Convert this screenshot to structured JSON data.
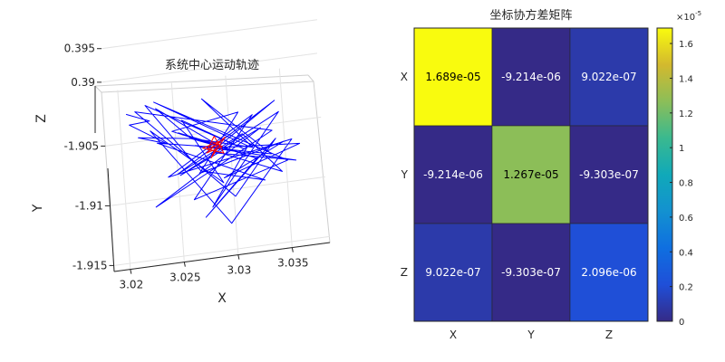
{
  "chart_data": [
    {
      "type": "line",
      "title": "系统中心运动轨迹",
      "xlabel": "X",
      "ylabel": "Y",
      "zlabel": "Z",
      "xlim": [
        3.0185,
        3.0385
      ],
      "ylim": [
        -1.9155,
        -1.9005
      ],
      "zlim": [
        0.3885,
        0.3955
      ],
      "x_ticks": [
        "3.02",
        "3.025",
        "3.03",
        "3.035"
      ],
      "y_ticks": [
        "-1.905",
        "-1.91",
        "-1.915"
      ],
      "z_ticks": [
        "0.395",
        "0.39"
      ],
      "grid": true,
      "series": [
        {
          "color": "#0000ff",
          "x": [
            3.0205,
            3.0225,
            3.0207,
            3.024,
            3.0215,
            3.0262,
            3.0232,
            3.0285,
            3.0252,
            3.0305,
            3.0262,
            3.0318,
            3.0275,
            3.0335,
            3.0282,
            3.0362,
            3.029,
            3.0348,
            3.0268,
            3.0308,
            3.0245,
            3.0322,
            3.0272,
            3.034,
            3.03,
            3.0212,
            3.0338,
            3.0226,
            3.0328,
            3.025,
            3.0345,
            3.0278,
            3.0315,
            3.023,
            3.035,
            3.0262,
            3.032,
            3.024,
            3.0355,
            3.0295,
            3.0225,
            3.029,
            3.0255,
            3.0312,
            3.0222,
            3.027,
            3.0328,
            3.0232,
            3.0286,
            3.0342,
            3.0248,
            3.031,
            3.0345,
            3.0266,
            3.0358,
            3.0282
          ],
          "y": [
            -1.904,
            -1.9062,
            -1.9052,
            -1.9079,
            -1.9058,
            -1.9084,
            -1.9044,
            -1.9087,
            -1.906,
            -1.9092,
            -1.9068,
            -1.9097,
            -1.904,
            -1.91,
            -1.9074,
            -1.909,
            -1.9118,
            -1.9082,
            -1.9106,
            -1.905,
            -1.9072,
            -1.9096,
            -1.9132,
            -1.9087,
            -1.9124,
            -1.9055,
            -1.907,
            -1.9128,
            -1.9062,
            -1.911,
            -1.9058,
            -1.9136,
            -1.9078,
            -1.9048,
            -1.9102,
            -1.912,
            -1.9066,
            -1.9094,
            -1.9086,
            -1.9142,
            -1.9071,
            -1.9112,
            -1.906,
            -1.9081,
            -1.9047,
            -1.9098,
            -1.9116,
            -1.9064,
            -1.9088,
            -1.9046,
            -1.9109,
            -1.9074,
            -1.9103,
            -1.9083,
            -1.9099,
            -1.9087
          ],
          "z": [
            0.391,
            0.3935,
            0.3915,
            0.3928,
            0.3905,
            0.394,
            0.392,
            0.3932,
            0.3908,
            0.3925,
            0.3912,
            0.3938,
            0.3918,
            0.393,
            0.3904,
            0.3922,
            0.3936,
            0.3914,
            0.3926,
            0.3909,
            0.3933,
            0.3919,
            0.3906,
            0.3929,
            0.3917,
            0.3939,
            0.3911,
            0.3924,
            0.3903,
            0.3934,
            0.3916,
            0.3927,
            0.3907,
            0.3937,
            0.3921,
            0.3913,
            0.3931,
            0.3905,
            0.3923,
            0.391,
            0.3936,
            0.3918,
            0.3926,
            0.3908,
            0.3932,
            0.3915,
            0.3921,
            0.3904,
            0.3929,
            0.3912,
            0.3935,
            0.3919,
            0.3907,
            0.3927,
            0.3914,
            0.392
          ]
        },
        {
          "color": "#ff0000",
          "x": [
            3.0282,
            3.0291,
            3.0276,
            3.0294,
            3.028,
            3.0288,
            3.0273,
            3.0292,
            3.0284,
            3.0277,
            3.0289
          ],
          "y": [
            -1.9078,
            -1.9084,
            -1.9086,
            -1.9076,
            -1.909,
            -1.908,
            -1.9082,
            -1.9088,
            -1.9074,
            -1.9085,
            -1.9079
          ],
          "z": [
            0.392,
            0.3922,
            0.3919,
            0.3921,
            0.3918,
            0.3923,
            0.392,
            0.3919,
            0.3921,
            0.3922,
            0.392
          ]
        }
      ]
    },
    {
      "type": "heatmap",
      "title": "坐标协方差矩阵",
      "x_categories": [
        "X",
        "Y",
        "Z"
      ],
      "y_categories": [
        "X",
        "Y",
        "Z"
      ],
      "values": [
        [
          1.689e-05,
          -9.214e-06,
          9.022e-07
        ],
        [
          -9.214e-06,
          1.267e-05,
          -9.303e-07
        ],
        [
          9.022e-07,
          -9.303e-07,
          2.096e-06
        ]
      ],
      "labels": [
        [
          "1.689e-05",
          "-9.214e-06",
          "9.022e-07"
        ],
        [
          "-9.214e-06",
          "1.267e-05",
          "-9.303e-07"
        ],
        [
          "9.022e-07",
          "-9.303e-07",
          "2.096e-06"
        ]
      ],
      "colormap": "parula",
      "colorbar": {
        "clim": [
          0,
          1.689e-05
        ],
        "exponent_label": "×10",
        "exponent_power": "-5",
        "ticks": [
          "0",
          "0.2",
          "0.4",
          "0.6",
          "0.8",
          "1",
          "1.2",
          "1.4",
          "1.6"
        ],
        "tick_values": [
          0,
          0.2,
          0.4,
          0.6,
          0.8,
          1.0,
          1.2,
          1.4,
          1.6
        ]
      }
    }
  ]
}
